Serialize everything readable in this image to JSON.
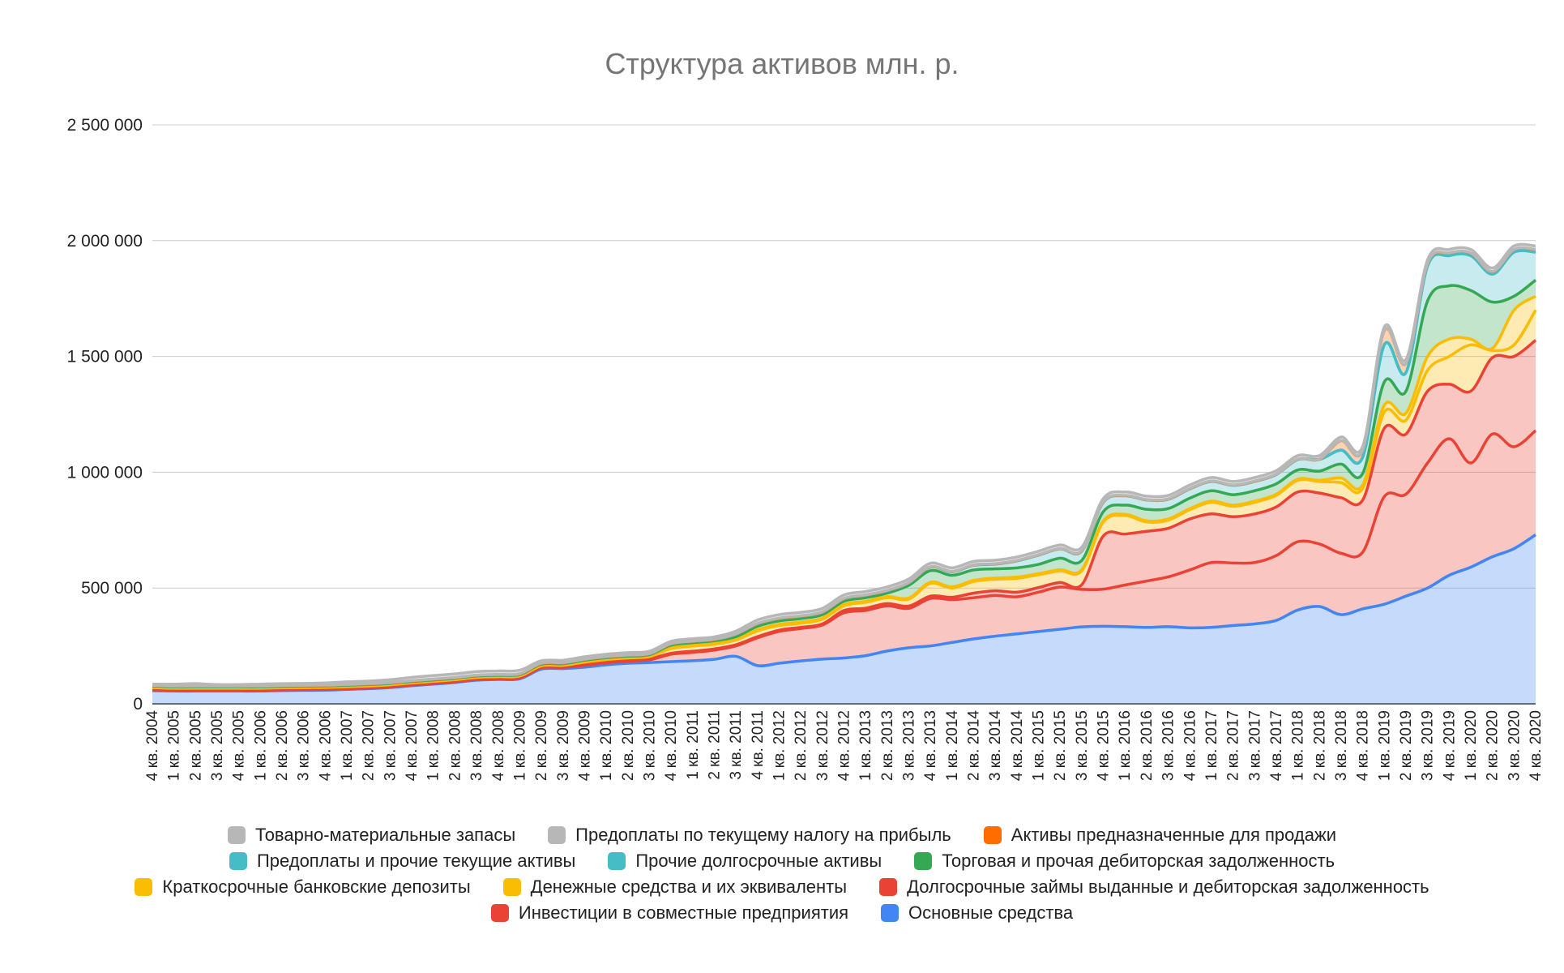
{
  "chart_data": {
    "type": "area",
    "stacked": true,
    "title": "Структура активов млн. р.",
    "xlabel": "",
    "ylabel": "",
    "ylim": [
      0,
      2500000
    ],
    "yticks": [
      0,
      500000,
      1000000,
      1500000,
      2000000,
      2500000
    ],
    "ytick_labels": [
      "0",
      "500 000",
      "1 000 000",
      "1 500 000",
      "2 000 000",
      "2 500 000"
    ],
    "grid": true,
    "legend_position": "bottom",
    "categories": [
      "4 кв. 2004",
      "1 кв. 2005",
      "2 кв. 2005",
      "3 кв. 2005",
      "4 кв. 2005",
      "1 кв. 2006",
      "2 кв. 2006",
      "3 кв. 2006",
      "4 кв. 2006",
      "1 кв. 2007",
      "2 кв. 2007",
      "3 кв. 2007",
      "4 кв. 2007",
      "1 кв. 2008",
      "2 кв. 2008",
      "3 кв. 2008",
      "4 кв. 2008",
      "1 кв. 2009",
      "2 кв. 2009",
      "3 кв. 2009",
      "4 кв. 2009",
      "1 кв. 2010",
      "2 кв. 2010",
      "3 кв. 2010",
      "4 кв. 2010",
      "1 кв. 2011",
      "2 кв. 2011",
      "3 кв. 2011",
      "4 кв. 2011",
      "1 кв. 2012",
      "2 кв. 2012",
      "3 кв. 2012",
      "4 кв. 2012",
      "1 кв. 2013",
      "2 кв. 2013",
      "3 кв. 2013",
      "4 кв. 2013",
      "1 кв. 2014",
      "2 кв. 2014",
      "3 кв. 2014",
      "4 кв. 2014",
      "1 кв. 2015",
      "2 кв. 2015",
      "3 кв. 2015",
      "4 кв. 2015",
      "1 кв. 2016",
      "2 кв. 2016",
      "3 кв. 2016",
      "4 кв. 2016",
      "1 кв. 2017",
      "2 кв. 2017",
      "3 кв. 2017",
      "4 кв. 2017",
      "1 кв. 2018",
      "2 кв. 2018",
      "3 кв. 2018",
      "4 кв. 2018",
      "1 кв. 2019",
      "2 кв. 2019",
      "3 кв. 2019",
      "4 кв. 2019",
      "1 кв. 2020",
      "2 кв. 2020",
      "3 кв. 2020",
      "4 кв. 2020"
    ],
    "series": [
      {
        "name": "Основные средства",
        "color": "#4285f4",
        "values": [
          57000,
          55000,
          55000,
          55000,
          55000,
          55000,
          57000,
          58000,
          59000,
          62000,
          65000,
          70000,
          78000,
          85000,
          92000,
          102000,
          105000,
          108000,
          150000,
          152000,
          158000,
          168000,
          175000,
          178000,
          182000,
          186000,
          192000,
          205000,
          165000,
          175000,
          185000,
          193000,
          198000,
          208000,
          228000,
          242000,
          250000,
          265000,
          280000,
          292000,
          302000,
          312000,
          322000,
          332000,
          335000,
          333000,
          330000,
          333000,
          328000,
          330000,
          338000,
          345000,
          360000,
          405000,
          420000,
          385000,
          410000,
          430000,
          465000,
          500000,
          555000,
          590000,
          635000,
          670000,
          730000
        ]
      },
      {
        "name": "Инвестиции в совместные предприятия",
        "color": "#ea4335",
        "values": [
          3000,
          3000,
          3000,
          3000,
          3000,
          3000,
          3000,
          3000,
          3000,
          3000,
          3000,
          3000,
          3000,
          3000,
          3000,
          3000,
          3000,
          3000,
          5000,
          5000,
          8000,
          9000,
          9000,
          12000,
          32000,
          36000,
          40000,
          45000,
          120000,
          138000,
          140000,
          147000,
          195000,
          195000,
          195000,
          170000,
          205000,
          185000,
          178000,
          176000,
          160000,
          170000,
          182000,
          162000,
          160000,
          180000,
          200000,
          215000,
          250000,
          280000,
          270000,
          265000,
          280000,
          295000,
          270000,
          265000,
          245000,
          465000,
          440000,
          540000,
          590000,
          450000,
          530000,
          440000,
          450000
        ]
      },
      {
        "name": "Долгосрочные займы выданные и дебиторская задолженность",
        "color": "#ea4335",
        "values": [
          5000,
          4000,
          4000,
          4000,
          4000,
          4000,
          4000,
          4000,
          4000,
          4000,
          4000,
          4000,
          4000,
          4000,
          4000,
          4000,
          4000,
          4000,
          4000,
          4000,
          4000,
          4000,
          4000,
          4000,
          4000,
          5000,
          5000,
          5000,
          5000,
          5000,
          5000,
          5000,
          10000,
          10000,
          10000,
          10000,
          10000,
          10000,
          20000,
          20000,
          20000,
          20000,
          20000,
          20000,
          230000,
          220000,
          215000,
          210000,
          220000,
          210000,
          200000,
          210000,
          210000,
          215000,
          220000,
          240000,
          225000,
          295000,
          260000,
          310000,
          235000,
          310000,
          330000,
          390000,
          390000
        ]
      },
      {
        "name": "Денежные средства и их эквиваленты",
        "color": "#fbbc04",
        "values": [
          5000,
          5000,
          5000,
          5000,
          5000,
          5000,
          5000,
          5000,
          5000,
          5000,
          5000,
          5000,
          5000,
          5000,
          5000,
          5000,
          5000,
          5000,
          5000,
          5000,
          10000,
          10000,
          10000,
          10000,
          20000,
          22000,
          20000,
          20000,
          25000,
          20000,
          18000,
          20000,
          20000,
          25000,
          25000,
          30000,
          55000,
          40000,
          50000,
          50000,
          60000,
          55000,
          50000,
          60000,
          60000,
          80000,
          40000,
          35000,
          40000,
          50000,
          45000,
          50000,
          50000,
          50000,
          50000,
          65000,
          50000,
          70000,
          60000,
          90000,
          120000,
          200000,
          30000,
          50000,
          130000
        ]
      },
      {
        "name": "Краткосрочные банковские депозиты",
        "color": "#fbbc04",
        "values": [
          1000,
          1000,
          1000,
          1000,
          1000,
          1000,
          1000,
          1000,
          1000,
          1000,
          1000,
          1000,
          1000,
          1000,
          1000,
          1000,
          1000,
          1000,
          2000,
          2000,
          3000,
          3000,
          3000,
          3000,
          5000,
          5000,
          5000,
          5000,
          5000,
          5000,
          5000,
          5000,
          5000,
          5000,
          5000,
          5000,
          5000,
          5000,
          5000,
          5000,
          5000,
          5000,
          5000,
          5000,
          5000,
          5000,
          5000,
          5000,
          5000,
          5000,
          5000,
          5000,
          5000,
          5000,
          5000,
          20000,
          15000,
          30000,
          30000,
          60000,
          75000,
          25000,
          10000,
          150000,
          60000
        ]
      },
      {
        "name": "Торговая и прочая дебиторская задолженность",
        "color": "#34a853",
        "values": [
          5000,
          5000,
          5000,
          5000,
          5000,
          5000,
          5000,
          5000,
          5000,
          5000,
          5000,
          5000,
          5000,
          5000,
          5000,
          5000,
          5000,
          5000,
          5000,
          5000,
          5000,
          5000,
          5000,
          5000,
          10000,
          10000,
          10000,
          10000,
          15000,
          15000,
          15000,
          15000,
          15000,
          15000,
          15000,
          55000,
          50000,
          50000,
          45000,
          40000,
          40000,
          40000,
          50000,
          40000,
          40000,
          40000,
          50000,
          45000,
          45000,
          45000,
          45000,
          45000,
          45000,
          40000,
          40000,
          60000,
          50000,
          100000,
          95000,
          240000,
          230000,
          210000,
          200000,
          60000,
          70000
        ]
      },
      {
        "name": "Прочие долгосрочные активы",
        "color": "#46bdc6",
        "values": [
          2000,
          2000,
          2000,
          2000,
          2000,
          2000,
          2000,
          2000,
          2000,
          2000,
          2000,
          2000,
          2000,
          2000,
          2000,
          2000,
          2000,
          2000,
          3000,
          3000,
          3000,
          3000,
          3000,
          3000,
          5000,
          5000,
          5000,
          10000,
          10000,
          10000,
          10000,
          10000,
          10000,
          10000,
          10000,
          10000,
          15000,
          15000,
          20000,
          20000,
          30000,
          40000,
          40000,
          40000,
          40000,
          40000,
          40000,
          40000,
          40000,
          40000,
          40000,
          40000,
          40000,
          45000,
          50000,
          60000,
          70000,
          160000,
          80000,
          150000,
          130000,
          150000,
          120000,
          190000,
          120000
        ]
      },
      {
        "name": "Предоплаты и прочие текущие активы",
        "color": "#46bdc6",
        "values": [
          1000,
          1000,
          1000,
          1000,
          1000,
          1000,
          1000,
          1000,
          1000,
          1000,
          1000,
          1000,
          1000,
          1000,
          1000,
          1000,
          1000,
          1000,
          1000,
          1000,
          1000,
          1000,
          1000,
          1000,
          1000,
          1000,
          1000,
          1000,
          1000,
          1000,
          1000,
          1000,
          1000,
          1000,
          1000,
          1000,
          1000,
          1000,
          1000,
          1000,
          1000,
          1000,
          1000,
          1000,
          1000,
          1000,
          1000,
          1000,
          1000,
          1000,
          1000,
          1000,
          1000,
          1000,
          1000,
          1000,
          1000,
          1000,
          1000,
          1000,
          1000,
          1000,
          1000,
          1000,
          1000
        ]
      },
      {
        "name": "Активы предназначенные для продажи",
        "color": "#ff6d01",
        "values": [
          0,
          0,
          0,
          0,
          0,
          0,
          0,
          0,
          0,
          0,
          0,
          0,
          0,
          0,
          0,
          0,
          0,
          0,
          0,
          0,
          0,
          0,
          0,
          0,
          0,
          0,
          0,
          0,
          0,
          0,
          0,
          0,
          0,
          0,
          0,
          0,
          0,
          0,
          0,
          0,
          0,
          0,
          0,
          0,
          0,
          0,
          0,
          0,
          0,
          0,
          0,
          0,
          0,
          0,
          0,
          40000,
          30000,
          60000,
          40000,
          10000,
          10000,
          10000,
          10000,
          10000,
          10000
        ]
      },
      {
        "name": "Предоплаты по текущему налогу на прибыль",
        "color": "#b7b7b7",
        "values": [
          1000,
          1000,
          1000,
          1000,
          1000,
          1000,
          1000,
          1000,
          1000,
          1000,
          1000,
          1000,
          1000,
          1000,
          1000,
          1000,
          1000,
          1000,
          1000,
          1000,
          1000,
          1000,
          1000,
          1000,
          1000,
          1000,
          1000,
          1000,
          1000,
          1000,
          1000,
          1000,
          1000,
          1000,
          1000,
          1000,
          1000,
          1000,
          1000,
          1000,
          1000,
          1000,
          1000,
          1000,
          1000,
          1000,
          1000,
          1000,
          1000,
          1000,
          1000,
          1000,
          1000,
          1000,
          1000,
          1000,
          1000,
          1000,
          1000,
          1000,
          1000,
          1000,
          1000,
          1000,
          1000
        ]
      },
      {
        "name": "Товарно-материальные запасы",
        "color": "#b7b7b7",
        "values": [
          5000,
          8000,
          10000,
          6000,
          6000,
          8000,
          8000,
          8000,
          9000,
          11000,
          11000,
          12000,
          14000,
          15000,
          15000,
          15000,
          15000,
          15000,
          10000,
          10000,
          10000,
          10000,
          10000,
          10000,
          10000,
          10000,
          10000,
          12000,
          15000,
          15000,
          15000,
          15000,
          15000,
          15000,
          15000,
          15000,
          15000,
          15000,
          15000,
          15000,
          15000,
          15000,
          15000,
          15000,
          15000,
          15000,
          15000,
          15000,
          15000,
          15000,
          15000,
          15000,
          15000,
          15000,
          15000,
          15000,
          15000,
          15000,
          15000,
          15000,
          15000,
          15000,
          15000,
          15000,
          15000
        ]
      }
    ]
  },
  "legend": {
    "rows": [
      [
        {
          "label": "Товарно-материальные запасы",
          "color": "#b7b7b7"
        },
        {
          "label": "Предоплаты по текущему налогу на прибыль",
          "color": "#b7b7b7"
        },
        {
          "label": "Активы предназначенные для продажи",
          "color": "#ff6d01"
        }
      ],
      [
        {
          "label": "Предоплаты и прочие текущие активы",
          "color": "#46bdc6"
        },
        {
          "label": "Прочие долгосрочные активы",
          "color": "#46bdc6"
        },
        {
          "label": "Торговая и прочая дебиторская задолженность",
          "color": "#34a853"
        }
      ],
      [
        {
          "label": "Краткосрочные банковские депозиты",
          "color": "#fbbc04"
        },
        {
          "label": "Денежные средства и их эквиваленты",
          "color": "#fbbc04"
        },
        {
          "label": "Долгосрочные займы выданные и дебиторская задолженность",
          "color": "#ea4335"
        }
      ],
      [
        {
          "label": "Инвестиции в совместные предприятия",
          "color": "#ea4335"
        },
        {
          "label": "Основные средства",
          "color": "#4285f4"
        }
      ]
    ]
  }
}
